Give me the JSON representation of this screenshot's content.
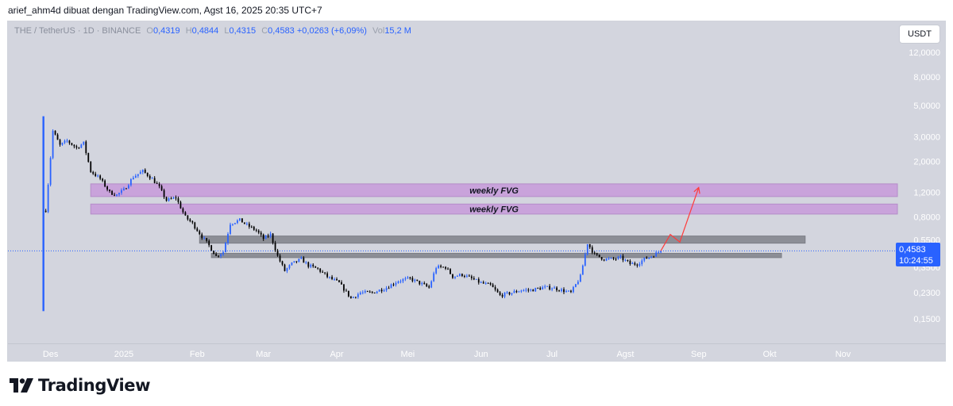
{
  "header": {
    "attribution": "arief_ahm4d dibuat dengan TradingView.com, Agst 16, 2025 20:35 UTC+7"
  },
  "legend": {
    "symbol": "THE / TetherUS · 1D · BINANCE",
    "o_label": "O",
    "o_value": "0,4319",
    "h_label": "H",
    "h_value": "0,4844",
    "l_label": "L",
    "l_value": "0,4315",
    "c_label": "C",
    "c_value": "0,4583",
    "change": "+0,0263 (+6,09%)",
    "vol_label": "Vol",
    "vol_value": "15,2 M"
  },
  "currency_button": "USDT",
  "price_tag": {
    "price": "0,4583",
    "countdown": "10:24:55"
  },
  "footer": {
    "brand": "TradingView"
  },
  "colors": {
    "background": "#d3d5de",
    "up_candle": "#2962ff",
    "down_candle": "#000000",
    "fvg_zone": "#c9a3db",
    "gray_zone": "#8c8e96",
    "projection_arrow": "#ff3b3b"
  },
  "chart_data": {
    "type": "candlestick",
    "y_scale": "log",
    "y_tick_labels": [
      "12,0000",
      "8,0000",
      "5,0000",
      "3,0000",
      "2,0000",
      "1,2000",
      "0,8000",
      "0,5500",
      "0,3500",
      "0,2300",
      "0,1500"
    ],
    "y_tick_values": [
      12,
      8,
      5,
      3,
      2,
      1.2,
      0.8,
      0.55,
      0.35,
      0.23,
      0.15
    ],
    "ylim": [
      0.1,
      20
    ],
    "x_tick_labels": [
      "Des",
      "2025",
      "Feb",
      "Mar",
      "Apr",
      "Mei",
      "Jun",
      "Jul",
      "Agst",
      "Sep",
      "Okt",
      "Nov"
    ],
    "x_tick_dates": [
      "2024-12-01",
      "2025-01-01",
      "2025-02-01",
      "2025-03-01",
      "2025-04-01",
      "2025-05-01",
      "2025-06-01",
      "2025-07-01",
      "2025-08-01",
      "2025-09-01",
      "2025-10-01",
      "2025-11-01"
    ],
    "xlim": [
      "2024-11-13",
      "2025-11-24"
    ],
    "series": [
      {
        "close": [
          [
            "2024-11-28",
            0.58
          ],
          [
            "2024-12-02",
            3.3
          ],
          [
            "2024-12-05",
            2.6
          ],
          [
            "2024-12-08",
            2.8
          ],
          [
            "2024-12-12",
            2.5
          ],
          [
            "2024-12-15",
            2.7
          ],
          [
            "2024-12-18",
            1.7
          ],
          [
            "2024-12-22",
            1.5
          ],
          [
            "2024-12-26",
            1.2
          ],
          [
            "2024-12-29",
            1.15
          ],
          [
            "2025-01-01",
            1.25
          ],
          [
            "2025-01-05",
            1.55
          ],
          [
            "2025-01-09",
            1.7
          ],
          [
            "2025-01-13",
            1.5
          ],
          [
            "2025-01-16",
            1.3
          ],
          [
            "2025-01-19",
            1.05
          ],
          [
            "2025-01-23",
            1.1
          ],
          [
            "2025-01-27",
            0.8
          ],
          [
            "2025-01-30",
            0.72
          ],
          [
            "2025-02-03",
            0.58
          ],
          [
            "2025-02-06",
            0.5
          ],
          [
            "2025-02-09",
            0.42
          ],
          [
            "2025-02-12",
            0.45
          ],
          [
            "2025-02-15",
            0.72
          ],
          [
            "2025-02-19",
            0.76
          ],
          [
            "2025-02-22",
            0.7
          ],
          [
            "2025-02-26",
            0.64
          ],
          [
            "2025-03-01",
            0.56
          ],
          [
            "2025-03-04",
            0.6
          ],
          [
            "2025-03-07",
            0.42
          ],
          [
            "2025-03-10",
            0.33
          ],
          [
            "2025-03-13",
            0.37
          ],
          [
            "2025-03-17",
            0.4
          ],
          [
            "2025-03-20",
            0.36
          ],
          [
            "2025-03-24",
            0.34
          ],
          [
            "2025-03-28",
            0.3
          ],
          [
            "2025-04-02",
            0.27
          ],
          [
            "2025-04-07",
            0.21
          ],
          [
            "2025-04-11",
            0.23
          ],
          [
            "2025-04-16",
            0.23
          ],
          [
            "2025-04-22",
            0.25
          ],
          [
            "2025-04-27",
            0.28
          ],
          [
            "2025-05-02",
            0.29
          ],
          [
            "2025-05-06",
            0.27
          ],
          [
            "2025-05-10",
            0.25
          ],
          [
            "2025-05-13",
            0.35
          ],
          [
            "2025-05-17",
            0.35
          ],
          [
            "2025-05-20",
            0.3
          ],
          [
            "2025-05-24",
            0.31
          ],
          [
            "2025-05-28",
            0.29
          ],
          [
            "2025-06-01",
            0.27
          ],
          [
            "2025-06-05",
            0.26
          ],
          [
            "2025-06-09",
            0.22
          ],
          [
            "2025-06-14",
            0.23
          ],
          [
            "2025-06-18",
            0.24
          ],
          [
            "2025-06-22",
            0.24
          ],
          [
            "2025-06-27",
            0.25
          ],
          [
            "2025-07-01",
            0.25
          ],
          [
            "2025-07-05",
            0.24
          ],
          [
            "2025-07-09",
            0.23
          ],
          [
            "2025-07-13",
            0.3
          ],
          [
            "2025-07-16",
            0.52
          ],
          [
            "2025-07-19",
            0.43
          ],
          [
            "2025-07-23",
            0.4
          ],
          [
            "2025-07-27",
            0.4
          ],
          [
            "2025-07-30",
            0.41
          ],
          [
            "2025-08-03",
            0.37
          ],
          [
            "2025-08-06",
            0.37
          ],
          [
            "2025-08-09",
            0.4
          ],
          [
            "2025-08-12",
            0.42
          ],
          [
            "2025-08-16",
            0.4583
          ]
        ]
      }
    ],
    "zones": [
      {
        "label": "weekly FVG",
        "low": 1.12,
        "high": 1.38,
        "start": "2024-12-18",
        "end": "2025-11-24"
      },
      {
        "label": "weekly FVG",
        "low": 0.84,
        "high": 0.99,
        "start": "2024-12-18",
        "end": "2025-11-24"
      },
      {
        "label": "",
        "low": 0.52,
        "high": 0.585,
        "start": "2025-02-02",
        "end": "2025-10-16"
      },
      {
        "label": "",
        "low": 0.41,
        "high": 0.44,
        "start": "2025-02-07",
        "end": "2025-10-06"
      }
    ],
    "last_price_line": 0.4583,
    "projection_arrow": [
      [
        "2025-08-16",
        0.4583
      ],
      [
        "2025-08-20",
        0.6
      ],
      [
        "2025-08-24",
        0.53
      ],
      [
        "2025-09-01",
        1.3
      ]
    ]
  }
}
